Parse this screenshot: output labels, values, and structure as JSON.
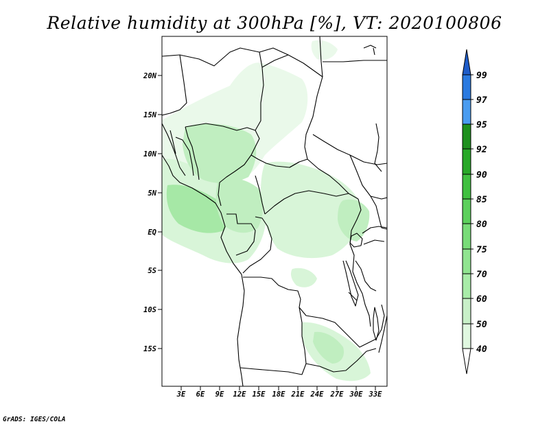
{
  "title": "Relative humidity at 300hPa [%], VT: 2020100806",
  "credit": "GrADS: IGES/COLA",
  "map": {
    "lon_range": [
      0,
      34.5
    ],
    "lat_range": [
      -19.5,
      24.5
    ],
    "lon_ticks": [
      "3E",
      "6E",
      "9E",
      "12E",
      "15E",
      "18E",
      "21E",
      "24E",
      "27E",
      "30E",
      "33E"
    ],
    "lat_ticks": [
      "20N",
      "15N",
      "10N",
      "5N",
      "EQ",
      "5S",
      "10S",
      "15S"
    ]
  },
  "colorbar": {
    "levels": [
      "40",
      "50",
      "60",
      "70",
      "75",
      "80",
      "85",
      "90",
      "92",
      "95",
      "97",
      "99"
    ],
    "colors": [
      "#f0fcf0",
      "#e0f8e0",
      "#c8f0c8",
      "#a8eca8",
      "#90e490",
      "#78dc78",
      "#5cd05c",
      "#40c040",
      "#28a828",
      "#1e901e",
      "#4a9cf0",
      "#2a7ae0",
      "#1e5cc8"
    ]
  },
  "colors": {
    "rh_40_50": "#eaf9ea",
    "rh_50_60": "#d8f5d8",
    "rh_60_70": "#c0eec0",
    "rh_70_75": "#a6e8a6",
    "border": "#000000"
  }
}
